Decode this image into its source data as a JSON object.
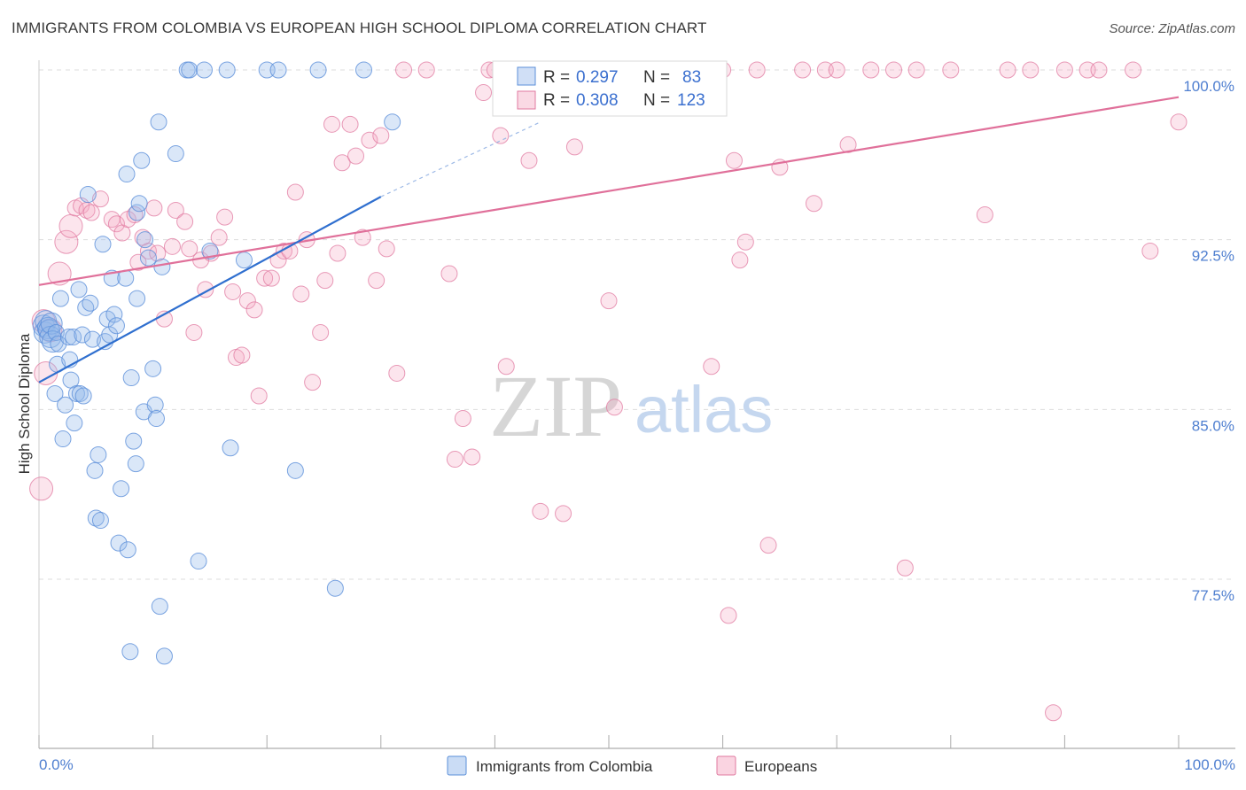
{
  "title": "IMMIGRANTS FROM COLOMBIA VS EUROPEAN HIGH SCHOOL DIPLOMA CORRELATION CHART",
  "source": "Source: ZipAtlas.com",
  "watermark": {
    "zip": "ZIP",
    "atlas": "atlas"
  },
  "colors": {
    "blue": "#5b8fd9",
    "blue_fill": "rgba(150,185,235,0.35)",
    "blue_line": "#2f6fcf",
    "pink": "#e07aa0",
    "pink_fill": "rgba(245,170,195,0.30)",
    "pink_line": "#e0709a",
    "grid": "#dddddd"
  },
  "legend_box": {
    "rows": [
      {
        "r_label": "R =",
        "r_value": "0.297",
        "n_label": "N =",
        "n_value": "83"
      },
      {
        "r_label": "R =",
        "r_value": "0.308",
        "n_label": "N =",
        "n_value": "123"
      }
    ]
  },
  "legend_bottom": {
    "series1": "Immigrants from Colombia",
    "series2": "Europeans"
  },
  "chart_data": {
    "type": "scatter",
    "title": "IMMIGRANTS FROM COLOMBIA VS EUROPEAN HIGH SCHOOL DIPLOMA CORRELATION CHART",
    "xlabel": "",
    "ylabel": "High School Diploma",
    "xlim": [
      0,
      100
    ],
    "ylim": [
      71.5,
      100.8
    ],
    "x_tick_labels": [
      "0.0%",
      "100.0%"
    ],
    "y_ticks": [
      77.5,
      85.0,
      92.5,
      100.0
    ],
    "y_tick_labels": [
      "77.5%",
      "85.0%",
      "92.5%",
      "100.0%"
    ],
    "grid": true,
    "legend_position": "top-center",
    "series": [
      {
        "name": "Immigrants from Colombia",
        "r": 0.297,
        "n": 83,
        "trend": {
          "x": [
            0,
            30
          ],
          "y": [
            86.2,
            94.4
          ],
          "dashed_to": [
            44,
            97.7
          ]
        },
        "points": [
          [
            0.4,
            88.7
          ],
          [
            0.5,
            88.4
          ],
          [
            0.6,
            88.9
          ],
          [
            0.8,
            88.6
          ],
          [
            0.9,
            88.5
          ],
          [
            1.0,
            88.2
          ],
          [
            1.1,
            88.8
          ],
          [
            1.2,
            88.0
          ],
          [
            1.4,
            85.7
          ],
          [
            1.5,
            88.4
          ],
          [
            1.6,
            87.0
          ],
          [
            1.7,
            87.9
          ],
          [
            1.9,
            89.9
          ],
          [
            2.1,
            83.7
          ],
          [
            2.3,
            85.2
          ],
          [
            2.6,
            88.2
          ],
          [
            2.7,
            87.2
          ],
          [
            2.8,
            86.3
          ],
          [
            3.0,
            88.2
          ],
          [
            3.1,
            84.4
          ],
          [
            3.3,
            85.7
          ],
          [
            3.5,
            90.3
          ],
          [
            3.6,
            85.7
          ],
          [
            3.8,
            88.3
          ],
          [
            3.9,
            85.6
          ],
          [
            4.1,
            89.5
          ],
          [
            4.3,
            94.5
          ],
          [
            4.5,
            89.7
          ],
          [
            4.7,
            88.1
          ],
          [
            4.9,
            82.3
          ],
          [
            5.0,
            80.2
          ],
          [
            5.2,
            83.0
          ],
          [
            5.4,
            80.1
          ],
          [
            5.6,
            92.3
          ],
          [
            5.8,
            88.0
          ],
          [
            6.0,
            89.0
          ],
          [
            6.2,
            88.3
          ],
          [
            6.4,
            90.8
          ],
          [
            6.6,
            89.2
          ],
          [
            6.8,
            88.7
          ],
          [
            7.0,
            79.1
          ],
          [
            7.2,
            81.5
          ],
          [
            7.6,
            90.8
          ],
          [
            7.7,
            95.4
          ],
          [
            7.8,
            78.8
          ],
          [
            8.0,
            74.3
          ],
          [
            8.1,
            86.4
          ],
          [
            8.3,
            83.6
          ],
          [
            8.5,
            82.6
          ],
          [
            8.6,
            89.9
          ],
          [
            8.6,
            93.7
          ],
          [
            8.8,
            94.1
          ],
          [
            9.0,
            96.0
          ],
          [
            9.2,
            84.9
          ],
          [
            9.3,
            92.5
          ],
          [
            9.6,
            91.7
          ],
          [
            10.0,
            86.8
          ],
          [
            10.2,
            85.2
          ],
          [
            10.3,
            84.6
          ],
          [
            10.5,
            97.7
          ],
          [
            10.6,
            76.3
          ],
          [
            10.8,
            91.3
          ],
          [
            11.0,
            74.1
          ],
          [
            12.0,
            96.3
          ],
          [
            13.0,
            100.0
          ],
          [
            13.2,
            100.0
          ],
          [
            14.0,
            78.3
          ],
          [
            14.5,
            100.0
          ],
          [
            15.0,
            92.0
          ],
          [
            16.5,
            100.0
          ],
          [
            16.8,
            83.3
          ],
          [
            18.0,
            91.6
          ],
          [
            20.0,
            100.0
          ],
          [
            21.0,
            100.0
          ],
          [
            22.5,
            82.3
          ],
          [
            24.5,
            100.0
          ],
          [
            26.0,
            77.1
          ],
          [
            28.5,
            100.0
          ],
          [
            31.0,
            97.7
          ]
        ]
      },
      {
        "name": "Europeans",
        "r": 0.308,
        "n": 123,
        "trend": {
          "x": [
            0,
            100
          ],
          "y": [
            90.5,
            98.8
          ]
        },
        "points": [
          [
            0.2,
            81.5
          ],
          [
            0.4,
            88.9
          ],
          [
            0.6,
            86.6
          ],
          [
            1.0,
            88.5
          ],
          [
            1.8,
            91.0
          ],
          [
            2.4,
            92.4
          ],
          [
            2.8,
            93.1
          ],
          [
            3.2,
            93.9
          ],
          [
            3.7,
            94.0
          ],
          [
            4.2,
            93.8
          ],
          [
            4.6,
            93.7
          ],
          [
            5.4,
            94.3
          ],
          [
            6.4,
            93.4
          ],
          [
            6.8,
            93.2
          ],
          [
            7.3,
            92.8
          ],
          [
            7.8,
            93.4
          ],
          [
            8.4,
            93.6
          ],
          [
            8.7,
            91.5
          ],
          [
            9.1,
            92.6
          ],
          [
            9.6,
            92.0
          ],
          [
            10.1,
            93.9
          ],
          [
            10.4,
            91.9
          ],
          [
            11.0,
            89.0
          ],
          [
            11.7,
            92.2
          ],
          [
            12.0,
            93.8
          ],
          [
            12.8,
            93.3
          ],
          [
            13.2,
            92.1
          ],
          [
            13.6,
            88.4
          ],
          [
            14.2,
            91.6
          ],
          [
            14.6,
            90.3
          ],
          [
            15.1,
            91.9
          ],
          [
            15.8,
            92.6
          ],
          [
            16.3,
            93.5
          ],
          [
            17.0,
            90.2
          ],
          [
            17.3,
            87.3
          ],
          [
            17.8,
            87.4
          ],
          [
            18.3,
            89.8
          ],
          [
            18.9,
            89.4
          ],
          [
            19.3,
            85.6
          ],
          [
            19.8,
            90.8
          ],
          [
            20.4,
            90.8
          ],
          [
            21.0,
            91.6
          ],
          [
            21.5,
            92.0
          ],
          [
            22.0,
            92.0
          ],
          [
            22.5,
            94.6
          ],
          [
            23.0,
            90.1
          ],
          [
            23.5,
            92.5
          ],
          [
            24.0,
            86.2
          ],
          [
            24.7,
            88.4
          ],
          [
            25.1,
            90.7
          ],
          [
            25.7,
            97.6
          ],
          [
            26.2,
            91.9
          ],
          [
            26.6,
            95.9
          ],
          [
            27.3,
            97.6
          ],
          [
            27.8,
            96.2
          ],
          [
            28.4,
            92.6
          ],
          [
            29.0,
            96.9
          ],
          [
            29.6,
            90.7
          ],
          [
            30.0,
            97.1
          ],
          [
            30.5,
            92.1
          ],
          [
            31.4,
            86.6
          ],
          [
            32.0,
            100.0
          ],
          [
            34.0,
            100.0
          ],
          [
            36.0,
            91.0
          ],
          [
            36.5,
            82.8
          ],
          [
            37.2,
            84.6
          ],
          [
            38.0,
            82.9
          ],
          [
            39.0,
            99.0
          ],
          [
            39.5,
            100.0
          ],
          [
            40.0,
            100.0
          ],
          [
            40.5,
            97.1
          ],
          [
            41.0,
            86.9
          ],
          [
            42.0,
            100.0
          ],
          [
            42.5,
            100.0
          ],
          [
            43.0,
            96.0
          ],
          [
            44.0,
            80.5
          ],
          [
            44.5,
            100.0
          ],
          [
            45.0,
            100.0
          ],
          [
            46.0,
            80.4
          ],
          [
            46.5,
            100.0
          ],
          [
            47.0,
            96.6
          ],
          [
            48.0,
            100.0
          ],
          [
            49.5,
            100.0
          ],
          [
            50.0,
            89.8
          ],
          [
            50.5,
            85.1
          ],
          [
            51.0,
            100.0
          ],
          [
            52.0,
            100.0
          ],
          [
            53.0,
            100.0
          ],
          [
            54.0,
            100.0
          ],
          [
            55.5,
            100.0
          ],
          [
            57.0,
            100.0
          ],
          [
            58.0,
            100.0
          ],
          [
            59.0,
            86.9
          ],
          [
            60.0,
            100.0
          ],
          [
            60.5,
            75.9
          ],
          [
            61.0,
            96.0
          ],
          [
            61.5,
            91.6
          ],
          [
            62.0,
            92.4
          ],
          [
            63.0,
            100.0
          ],
          [
            64.0,
            79.0
          ],
          [
            65.0,
            95.7
          ],
          [
            67.0,
            100.0
          ],
          [
            68.0,
            94.1
          ],
          [
            69.0,
            100.0
          ],
          [
            70.0,
            100.0
          ],
          [
            71.0,
            96.7
          ],
          [
            73.0,
            100.0
          ],
          [
            75.0,
            100.0
          ],
          [
            76.0,
            78.0
          ],
          [
            77.0,
            100.0
          ],
          [
            80.0,
            100.0
          ],
          [
            83.0,
            93.6
          ],
          [
            85.0,
            100.0
          ],
          [
            87.0,
            100.0
          ],
          [
            89.0,
            71.6
          ],
          [
            90.0,
            100.0
          ],
          [
            92.0,
            100.0
          ],
          [
            93.0,
            100.0
          ],
          [
            96.0,
            100.0
          ],
          [
            97.5,
            92.0
          ],
          [
            100.0,
            97.7
          ]
        ]
      }
    ]
  }
}
